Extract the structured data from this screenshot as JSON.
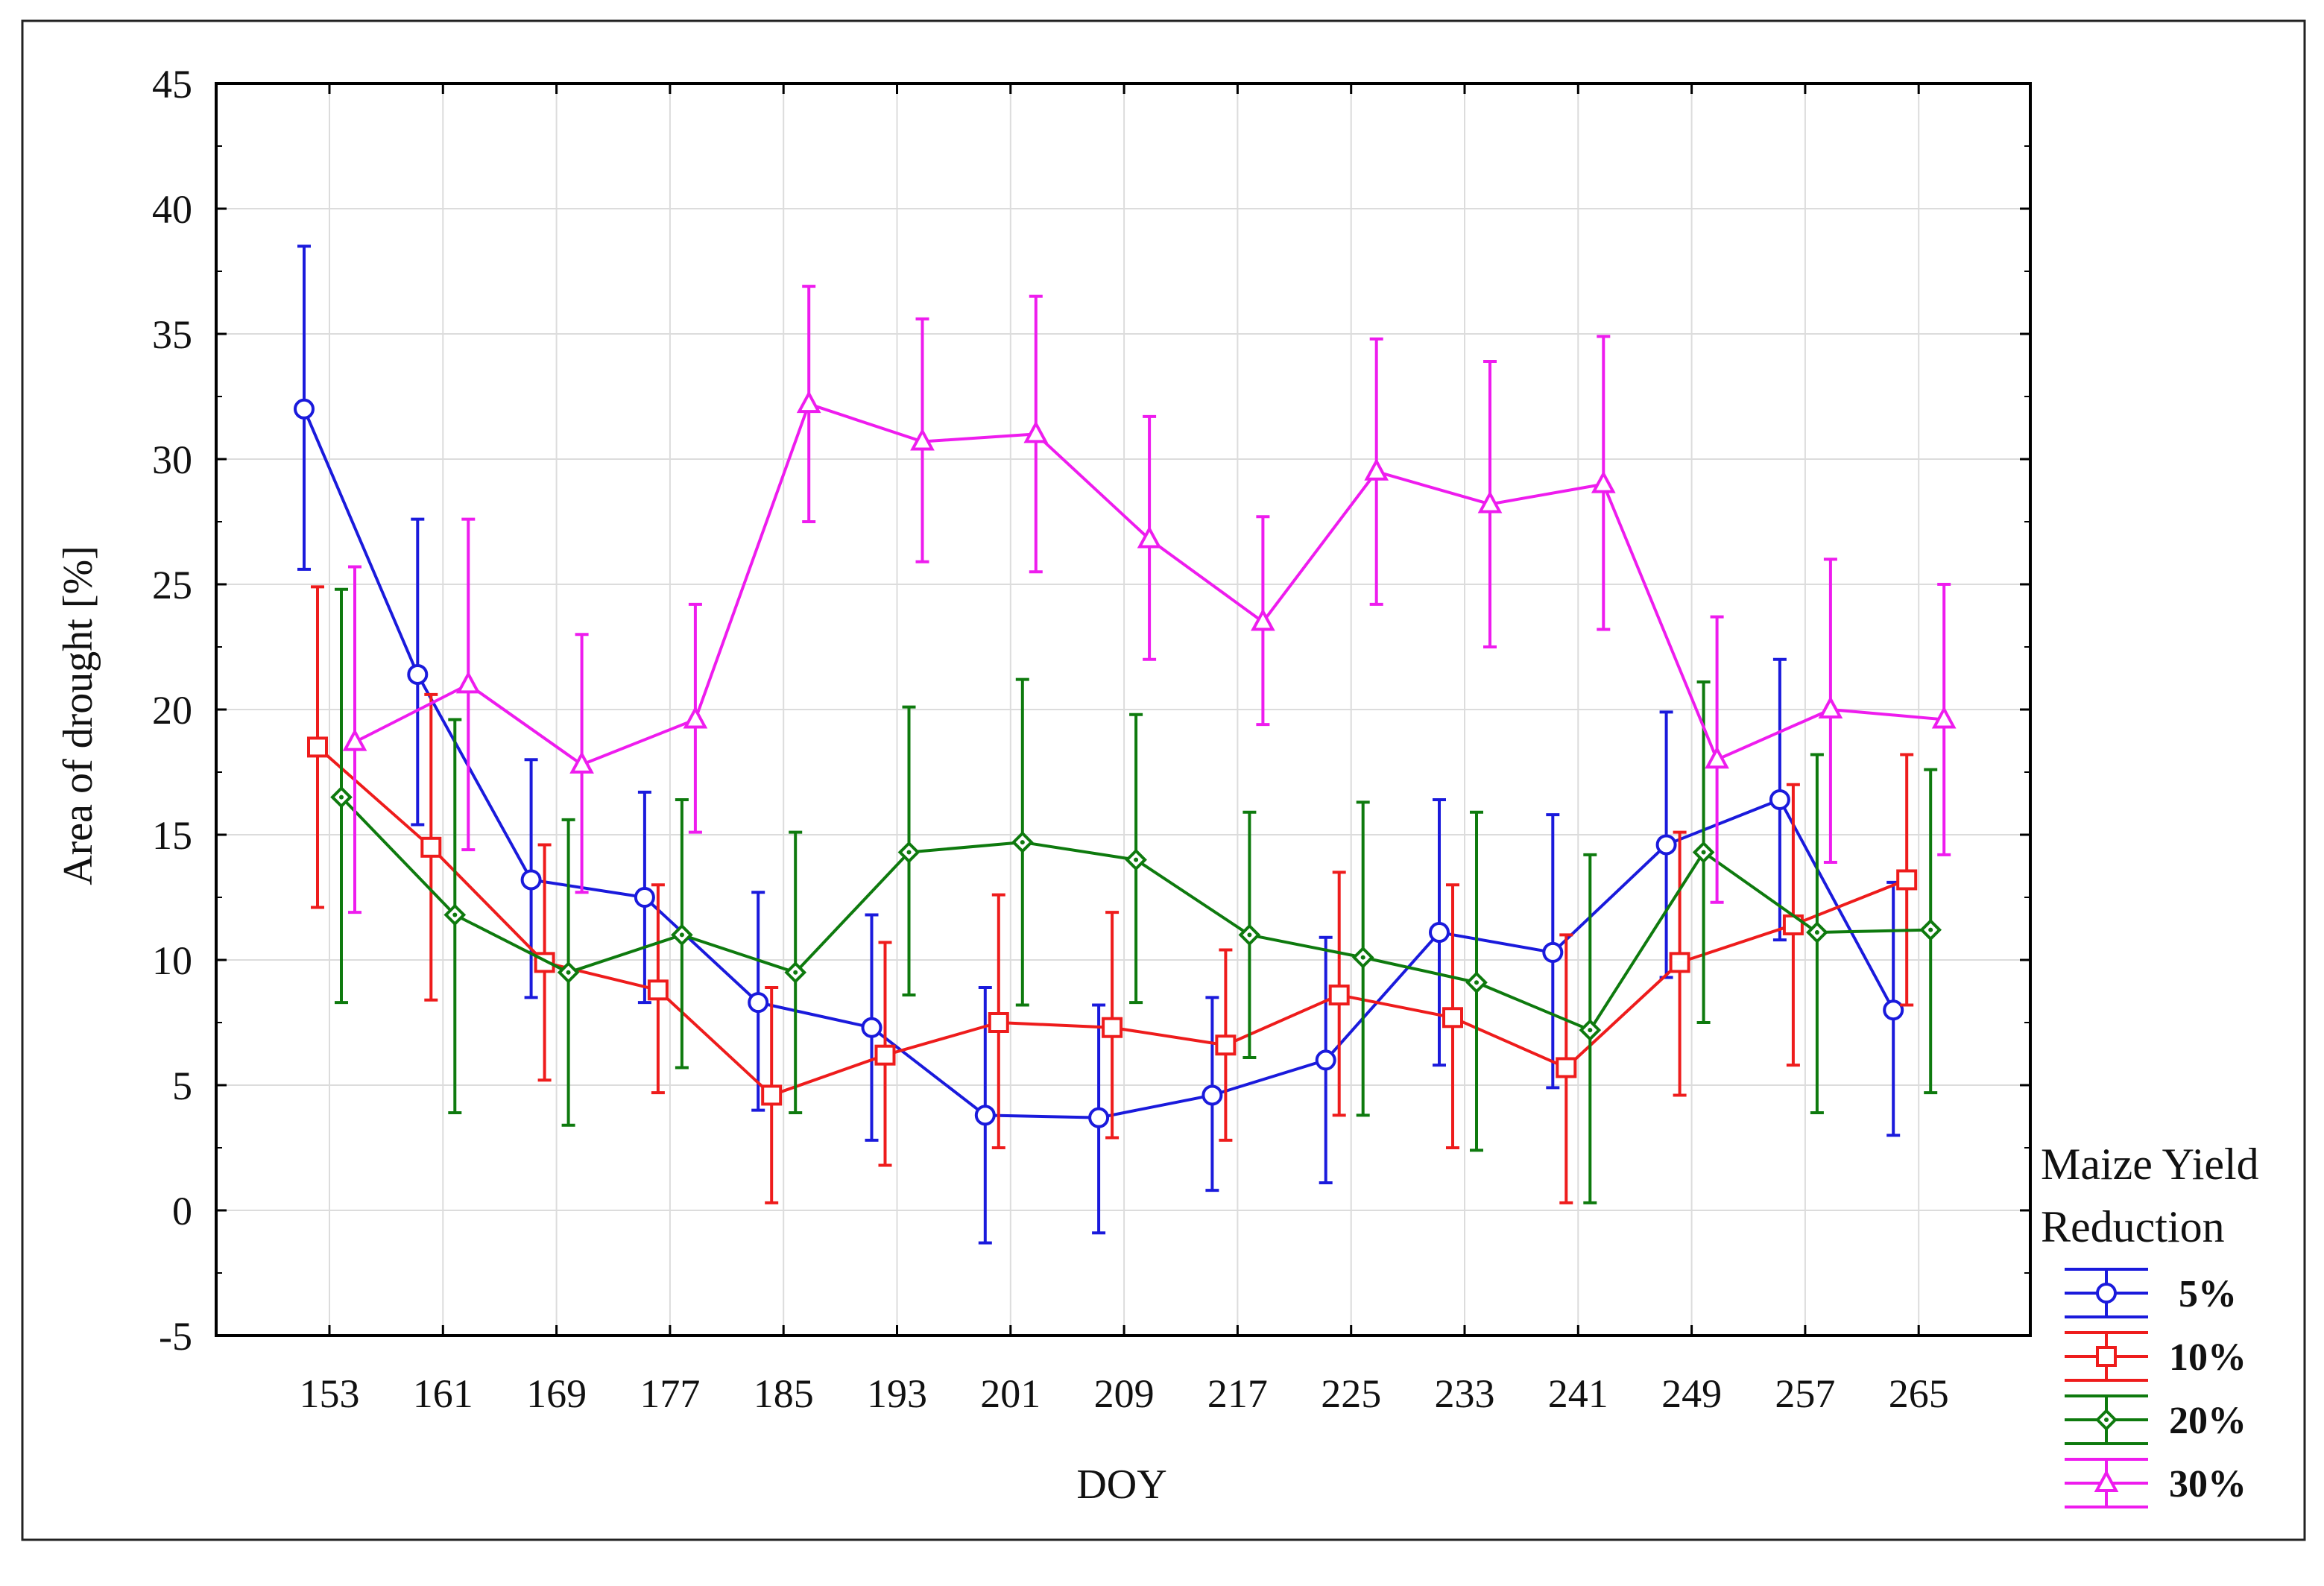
{
  "chart_data": {
    "type": "line",
    "title": "",
    "xlabel": "DOY",
    "ylabel": "Area of drought [%]",
    "categories": [
      "153",
      "161",
      "169",
      "177",
      "185",
      "193",
      "201",
      "209",
      "217",
      "225",
      "233",
      "241",
      "249",
      "257",
      "265"
    ],
    "ylim": [
      -5,
      45
    ],
    "yticks": [
      -5,
      0,
      5,
      10,
      15,
      20,
      25,
      30,
      35,
      40,
      45
    ],
    "grid": true,
    "legend": {
      "title_line1": "Maize Yield",
      "title_line2": "Reduction",
      "placement": "right"
    },
    "series": [
      {
        "name": "5%",
        "color": "#1a1adc",
        "marker": "circle",
        "values": [
          32.0,
          21.4,
          13.2,
          12.5,
          8.3,
          7.3,
          3.8,
          3.7,
          4.6,
          6.0,
          11.1,
          10.3,
          14.6,
          16.4,
          8.0
        ],
        "err_low": [
          25.6,
          15.4,
          8.5,
          8.3,
          4.0,
          2.8,
          -1.3,
          -0.9,
          0.8,
          1.1,
          5.8,
          4.9,
          9.3,
          10.8,
          3.0
        ],
        "err_high": [
          38.5,
          27.6,
          18.0,
          16.7,
          12.7,
          11.8,
          8.9,
          8.2,
          8.5,
          10.9,
          16.4,
          15.8,
          19.9,
          22.0,
          13.1
        ]
      },
      {
        "name": "10%",
        "color": "#ee1c1c",
        "marker": "square",
        "values": [
          18.5,
          14.5,
          9.9,
          8.8,
          4.6,
          6.2,
          7.5,
          7.3,
          6.6,
          8.6,
          7.7,
          5.7,
          9.9,
          11.4,
          13.2
        ],
        "err_low": [
          12.1,
          8.4,
          5.2,
          4.7,
          0.3,
          1.8,
          2.5,
          2.9,
          2.8,
          3.8,
          2.5,
          0.3,
          4.6,
          5.8,
          8.2
        ],
        "err_high": [
          24.9,
          20.6,
          14.6,
          13.0,
          8.9,
          10.7,
          12.6,
          11.9,
          10.4,
          13.5,
          13.0,
          11.0,
          15.1,
          17.0,
          18.2
        ]
      },
      {
        "name": "20%",
        "color": "#0e7a0e",
        "marker": "diamond",
        "values": [
          16.5,
          11.8,
          9.5,
          11.0,
          9.5,
          14.3,
          14.7,
          14.0,
          11.0,
          10.1,
          9.1,
          7.2,
          14.3,
          11.1,
          11.2
        ],
        "err_low": [
          8.3,
          3.9,
          3.4,
          5.7,
          3.9,
          8.6,
          8.2,
          8.3,
          6.1,
          3.8,
          2.4,
          0.3,
          7.5,
          3.9,
          4.7
        ],
        "err_high": [
          24.8,
          19.6,
          15.6,
          16.4,
          15.1,
          20.1,
          21.2,
          19.8,
          15.9,
          16.3,
          15.9,
          14.2,
          21.1,
          18.2,
          17.6
        ]
      },
      {
        "name": "30%",
        "color": "#ee1cee",
        "marker": "triangle",
        "values": [
          18.7,
          21.0,
          17.8,
          19.6,
          32.2,
          30.7,
          31.0,
          26.8,
          23.5,
          29.5,
          28.2,
          29.0,
          18.0,
          20.0,
          19.6
        ],
        "err_low": [
          11.9,
          14.4,
          12.7,
          15.1,
          27.5,
          25.9,
          25.5,
          22.0,
          19.4,
          24.2,
          22.5,
          23.2,
          12.3,
          13.9,
          14.2
        ],
        "err_high": [
          25.7,
          27.6,
          23.0,
          24.2,
          36.9,
          35.6,
          36.5,
          31.7,
          27.7,
          34.8,
          33.9,
          34.9,
          23.7,
          26.0,
          25.0
        ]
      }
    ]
  }
}
